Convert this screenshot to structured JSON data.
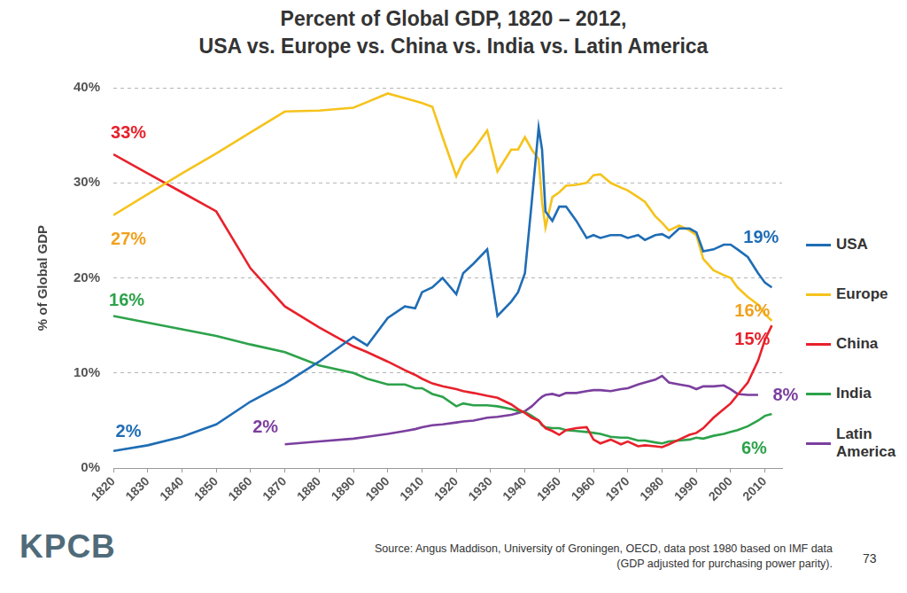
{
  "chart_data": {
    "type": "line",
    "title": [
      "Percent of Global GDP, 1820 – 2012,",
      "USA vs. Europe vs. China vs. India vs. Latin America"
    ],
    "y_label": "% of Global GDP",
    "x": [
      1820,
      1830,
      1840,
      1850,
      1860,
      1870,
      1880,
      1890,
      1894,
      1900,
      1905,
      1908,
      1910,
      1913,
      1916,
      1920,
      1922,
      1925,
      1929,
      1932,
      1936,
      1938,
      1940,
      1942,
      1944,
      1945,
      1946,
      1948,
      1950,
      1952,
      1955,
      1958,
      1960,
      1962,
      1965,
      1968,
      1970,
      1973,
      1975,
      1978,
      1980,
      1982,
      1985,
      1988,
      1990,
      1992,
      1995,
      1998,
      2000,
      2002,
      2005,
      2008,
      2010,
      2012
    ],
    "xlim": [
      1820,
      2015
    ],
    "xticks": [
      1820,
      1830,
      1840,
      1850,
      1860,
      1870,
      1880,
      1890,
      1900,
      1910,
      1920,
      1930,
      1940,
      1950,
      1960,
      1970,
      1980,
      1990,
      2000,
      2010
    ],
    "ylim": [
      0,
      40
    ],
    "yticks": [
      {
        "value": 0,
        "label": "0%"
      },
      {
        "value": 10,
        "label": "10%"
      },
      {
        "value": 20,
        "label": "20%"
      },
      {
        "value": 30,
        "label": "30%"
      },
      {
        "value": 40,
        "label": "40%"
      }
    ],
    "grid": true,
    "legend": "right",
    "series": [
      {
        "name": "USA",
        "color": "#1f6db5",
        "values": [
          1.8,
          2.4,
          3.3,
          4.6,
          7.0,
          8.9,
          11.2,
          13.8,
          12.9,
          15.8,
          17.0,
          16.8,
          18.5,
          19.0,
          20.0,
          18.3,
          20.5,
          21.5,
          23.0,
          16.0,
          17.5,
          18.5,
          20.5,
          28.0,
          35.8,
          33.5,
          27.0,
          26.0,
          27.5,
          27.5,
          26.0,
          24.2,
          24.5,
          24.2,
          24.5,
          24.5,
          24.2,
          24.5,
          24.0,
          24.5,
          24.6,
          24.2,
          25.2,
          25.2,
          24.8,
          22.8,
          23.0,
          23.5,
          23.5,
          23.0,
          22.2,
          20.5,
          19.5,
          19.0
        ]
      },
      {
        "name": "Europe",
        "color": "#f5c31c",
        "values": [
          26.6,
          28.8,
          31.0,
          33.1,
          35.3,
          37.5,
          37.6,
          37.9,
          38.5,
          39.4,
          38.9,
          38.6,
          38.4,
          38.0,
          34.8,
          30.7,
          32.3,
          33.5,
          35.5,
          31.2,
          33.5,
          33.5,
          34.8,
          33.5,
          32.5,
          28.0,
          25.3,
          28.5,
          29.0,
          29.7,
          29.8,
          30.0,
          30.8,
          30.9,
          30.0,
          29.5,
          29.2,
          28.5,
          28.0,
          26.5,
          25.8,
          25.0,
          25.5,
          25.0,
          24.5,
          22.0,
          20.8,
          20.3,
          20.0,
          19.0,
          18.0,
          17.2,
          16.2,
          15.5
        ]
      },
      {
        "name": "China",
        "color": "#e8212b",
        "values": [
          33.0,
          31.0,
          29.0,
          27.0,
          21.0,
          17.0,
          14.8,
          12.8,
          12.2,
          11.2,
          10.3,
          9.8,
          9.4,
          8.9,
          8.6,
          8.3,
          8.1,
          7.9,
          7.6,
          7.4,
          6.7,
          6.2,
          5.8,
          5.3,
          5.0,
          4.6,
          4.2,
          3.9,
          3.5,
          4.0,
          4.2,
          4.3,
          3.0,
          2.6,
          3.0,
          2.5,
          2.8,
          2.3,
          2.4,
          2.3,
          2.2,
          2.5,
          3.0,
          3.5,
          3.7,
          4.2,
          5.3,
          6.2,
          6.8,
          7.7,
          9.0,
          11.3,
          13.5,
          15.0
        ]
      },
      {
        "name": "India",
        "color": "#2ca24a",
        "values": [
          16.0,
          15.3,
          14.6,
          13.9,
          13.0,
          12.2,
          10.8,
          10.0,
          9.4,
          8.8,
          8.8,
          8.4,
          8.4,
          7.8,
          7.5,
          6.5,
          6.8,
          6.6,
          6.6,
          6.5,
          6.2,
          6.0,
          5.9,
          5.5,
          5.0,
          4.5,
          4.3,
          4.2,
          4.2,
          4.0,
          3.9,
          3.8,
          3.7,
          3.6,
          3.3,
          3.2,
          3.2,
          2.9,
          2.9,
          2.7,
          2.6,
          2.8,
          2.9,
          3.0,
          3.2,
          3.1,
          3.4,
          3.6,
          3.8,
          4.0,
          4.4,
          5.0,
          5.5,
          5.7
        ]
      },
      {
        "name": "Latin America",
        "color": "#7b3f9e",
        "values": [
          null,
          null,
          null,
          null,
          null,
          2.5,
          2.8,
          3.1,
          3.3,
          3.6,
          3.9,
          4.1,
          4.3,
          4.5,
          4.6,
          4.8,
          4.9,
          5.0,
          5.3,
          5.4,
          5.6,
          5.8,
          6.0,
          6.5,
          7.2,
          7.5,
          7.7,
          7.8,
          7.6,
          7.9,
          7.9,
          8.1,
          8.2,
          8.2,
          8.1,
          8.3,
          8.4,
          8.8,
          9.0,
          9.3,
          9.7,
          9.0,
          8.8,
          8.6,
          8.3,
          8.6,
          8.6,
          8.7,
          8.3,
          7.8,
          7.7,
          7.7,
          null,
          null
        ]
      }
    ],
    "annotations": [
      {
        "text": "33%",
        "x": 1820,
        "y": 33,
        "color": "#e8212b"
      },
      {
        "text": "27%",
        "x": 1820,
        "y": 27,
        "color": "#f0a11e"
      },
      {
        "text": "16%",
        "x": 1820,
        "y": 16,
        "color": "#2ca24a"
      },
      {
        "text": "2%",
        "x": 1820,
        "y": 2,
        "color": "#1f6db5"
      },
      {
        "text": "2%",
        "x": 1870,
        "y": 2,
        "color": "#7b3f9e"
      },
      {
        "text": "19%",
        "x": 2012,
        "y": 19,
        "color": "#1f6db5"
      },
      {
        "text": "16%",
        "x": 2012,
        "y": 16,
        "color": "#f0a11e"
      },
      {
        "text": "15%",
        "x": 2012,
        "y": 15,
        "color": "#e8212b"
      },
      {
        "text": "8%",
        "x": 2008,
        "y": 8,
        "color": "#7b3f9e"
      },
      {
        "text": "6%",
        "x": 2012,
        "y": 6,
        "color": "#2ca24a"
      }
    ]
  },
  "footer": {
    "logo": "KPCB",
    "source": [
      "Source: Angus Maddison, University of Groningen, OECD, data post 1980 based on IMF data",
      "(GDP adjusted for purchasing power parity)."
    ],
    "page": 73
  }
}
